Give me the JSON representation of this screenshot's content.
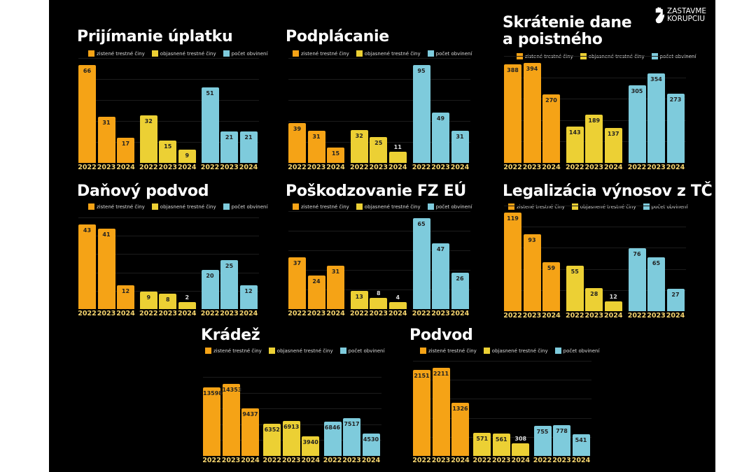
{
  "logo": {
    "line1": "ZASTAVME",
    "line2": "KORUPCIU",
    "icon": "raised-hand-icon"
  },
  "colors": {
    "zistene": "#f5a316",
    "objasnene": "#ecd034",
    "obvineni": "#7ecbdc",
    "year_label": "#f5d46e",
    "background": "#000000"
  },
  "legend": [
    "zistené trestné činy",
    "objasnené trestné činy",
    "počet obvinení"
  ],
  "chart_data": [
    {
      "type": "bar",
      "title": "Prijímanie úplatku",
      "categories": [
        "2022",
        "2023",
        "2024"
      ],
      "grid": true,
      "legend": "top",
      "series": [
        {
          "name": "zistené trestné činy",
          "values": [
            66,
            31,
            17
          ]
        },
        {
          "name": "objasnené trestné činy",
          "values": [
            32,
            15,
            9
          ]
        },
        {
          "name": "počet obvinení",
          "values": [
            51,
            21,
            21
          ]
        }
      ]
    },
    {
      "type": "bar",
      "title": "Podplácanie",
      "categories": [
        "2022",
        "2023",
        "2024"
      ],
      "grid": true,
      "legend": "top",
      "series": [
        {
          "name": "zistené trestné činy",
          "values": [
            39,
            31,
            15
          ]
        },
        {
          "name": "objasnené trestné činy",
          "values": [
            32,
            25,
            11
          ]
        },
        {
          "name": "počet obvinení",
          "values": [
            95,
            49,
            31
          ]
        }
      ]
    },
    {
      "type": "bar",
      "title": "Skrátenie dane a poistného",
      "categories": [
        "2022",
        "2023",
        "2024"
      ],
      "grid": true,
      "legend": "top",
      "series": [
        {
          "name": "zistené trestné činy",
          "values": [
            388,
            394,
            270
          ]
        },
        {
          "name": "objasnené trestné činy",
          "values": [
            143,
            189,
            137
          ]
        },
        {
          "name": "počet obvinení",
          "values": [
            305,
            354,
            273
          ]
        }
      ]
    },
    {
      "type": "bar",
      "title": "Daňový podvod",
      "categories": [
        "2022",
        "2023",
        "2024"
      ],
      "grid": true,
      "legend": "top",
      "series": [
        {
          "name": "zistené trestné činy",
          "values": [
            43,
            41,
            12
          ]
        },
        {
          "name": "objasnené trestné činy",
          "values": [
            9,
            8,
            2
          ]
        },
        {
          "name": "počet obvinení",
          "values": [
            20,
            25,
            12
          ]
        }
      ]
    },
    {
      "type": "bar",
      "title": "Poškodzovanie FZ EÚ",
      "categories": [
        "2022",
        "2023",
        "2024"
      ],
      "grid": true,
      "legend": "top",
      "series": [
        {
          "name": "zistené trestné činy",
          "values": [
            37,
            24,
            31
          ]
        },
        {
          "name": "objasnené trestné činy",
          "values": [
            13,
            8,
            4
          ]
        },
        {
          "name": "počet obvinení",
          "values": [
            65,
            47,
            26
          ]
        }
      ]
    },
    {
      "type": "bar",
      "title": "Legalizácia výnosov z TČ",
      "categories": [
        "2022",
        "2023",
        "2024"
      ],
      "grid": true,
      "legend": "top",
      "series": [
        {
          "name": "zistené trestné činy",
          "values": [
            119,
            93,
            59
          ]
        },
        {
          "name": "objasnené trestné činy",
          "values": [
            55,
            28,
            12
          ]
        },
        {
          "name": "počet obvinení",
          "values": [
            76,
            65,
            27
          ]
        }
      ]
    },
    {
      "type": "bar",
      "title": "Krádež",
      "categories": [
        "2022",
        "2023",
        "2024"
      ],
      "grid": true,
      "legend": "top",
      "series": [
        {
          "name": "zistené trestné činy",
          "values": [
            13598,
            14353,
            9437
          ]
        },
        {
          "name": "objasnené trestné činy",
          "values": [
            6352,
            6913,
            3940
          ]
        },
        {
          "name": "počet obvinení",
          "values": [
            6846,
            7517,
            4530
          ]
        }
      ]
    },
    {
      "type": "bar",
      "title": "Podvod",
      "categories": [
        "2022",
        "2023",
        "2024"
      ],
      "grid": true,
      "legend": "top",
      "series": [
        {
          "name": "zistené trestné činy",
          "values": [
            2151,
            2211,
            1326
          ]
        },
        {
          "name": "objasnené trestné činy",
          "values": [
            571,
            561,
            308
          ]
        },
        {
          "name": "počet obvinení",
          "values": [
            755,
            778,
            541
          ]
        }
      ]
    }
  ]
}
